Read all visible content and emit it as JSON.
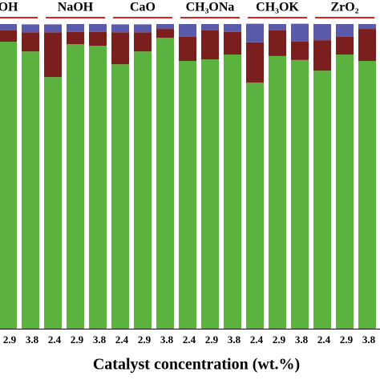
{
  "chart_data": {
    "type": "stacked-bar",
    "x_label": "Catalyst concentration (wt.%)",
    "groups": [
      "OH",
      "NaOH",
      "CaO",
      "CH₃ONa",
      "CH₃OK",
      "ZrO₂"
    ],
    "categories": [
      "2.9",
      "3.8",
      "2.4",
      "2.9",
      "3.8",
      "2.4",
      "2.9",
      "3.8",
      "2.4",
      "2.9",
      "3.8",
      "2.4",
      "2.9",
      "3.8",
      "2.4",
      "2.9",
      "3.8"
    ],
    "ylim": [
      0,
      100
    ],
    "series": [
      {
        "color": "#5cb23e",
        "values": [
          94.2,
          91,
          82.6,
          93.4,
          92.9,
          86.8,
          91,
          95.5,
          87.9,
          88.4,
          90,
          80.8,
          89.5,
          88.2,
          84.7,
          90,
          87.9
        ]
      },
      {
        "color": "#7b1e1e",
        "values": [
          3.7,
          6.3,
          14.7,
          4,
          4.5,
          10.5,
          6.3,
          2.9,
          7.9,
          9.5,
          7.4,
          13.2,
          8.4,
          6.1,
          10,
          5.8,
          10.5
        ]
      },
      {
        "color": "#5a5aaa",
        "values": [
          2.1,
          2.6,
          2.6,
          2.6,
          2.6,
          2.6,
          2.6,
          1.6,
          4.2,
          2.1,
          2.6,
          6.1,
          2.1,
          5.8,
          5.3,
          4.2,
          1.6
        ]
      }
    ]
  }
}
